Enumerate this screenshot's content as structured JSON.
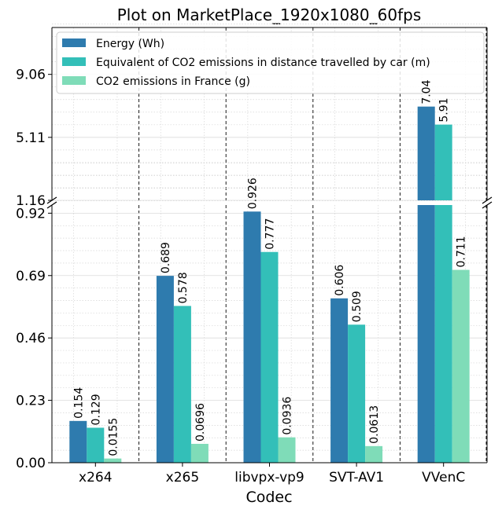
{
  "chart_data": {
    "type": "bar",
    "title": "Plot on MarketPlace_1920x1080_60fps",
    "xlabel": "Codec",
    "ylabel": "",
    "categories": [
      "x264",
      "x265",
      "libvpx-vp9",
      "SVT-AV1",
      "VVenC"
    ],
    "series": [
      {
        "name": "Energy (Wh)",
        "color": "#2e7bae",
        "values": [
          0.154,
          0.689,
          0.926,
          0.606,
          7.04
        ],
        "labels": [
          "0.154",
          "0.689",
          "0.926",
          "0.606",
          "7.04"
        ]
      },
      {
        "name": "Equivalent of CO2 emissions in distance travelled by car (m)",
        "color": "#33bfb8",
        "values": [
          0.129,
          0.578,
          0.777,
          0.509,
          5.91
        ],
        "labels": [
          "0.129",
          "0.578",
          "0.777",
          "0.509",
          "5.91"
        ]
      },
      {
        "name": "CO2 emissions in France (g)",
        "color": "#7fdcb8",
        "values": [
          0.0155,
          0.0696,
          0.0936,
          0.0613,
          0.711
        ],
        "labels": [
          "0.0155",
          "0.0696",
          "0.0936",
          "0.0613",
          "0.711"
        ]
      }
    ],
    "broken_axis": true,
    "upper_ylim": [
      1.16,
      12.0
    ],
    "lower_ylim": [
      0,
      0.95
    ],
    "upper_ticks": [
      "1.16",
      "5.11",
      "9.06"
    ],
    "lower_ticks": [
      "0.00",
      "0.23",
      "0.46",
      "0.69",
      "0.92"
    ],
    "legend_position": "top",
    "grid": true
  }
}
